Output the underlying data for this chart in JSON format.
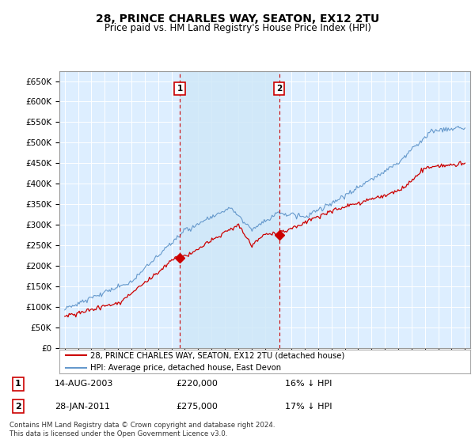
{
  "title": "28, PRINCE CHARLES WAY, SEATON, EX12 2TU",
  "subtitle": "Price paid vs. HM Land Registry's House Price Index (HPI)",
  "ylim": [
    0,
    675000
  ],
  "yticks": [
    0,
    50000,
    100000,
    150000,
    200000,
    250000,
    300000,
    350000,
    400000,
    450000,
    500000,
    550000,
    600000,
    650000
  ],
  "ylabels": [
    "£0",
    "£50K",
    "£100K",
    "£150K",
    "£200K",
    "£250K",
    "£300K",
    "£350K",
    "£400K",
    "£450K",
    "£500K",
    "£550K",
    "£600K",
    "£650K"
  ],
  "xlim": [
    1994.6,
    2025.4
  ],
  "xticks": [
    1995,
    1996,
    1997,
    1998,
    1999,
    2000,
    2001,
    2002,
    2003,
    2004,
    2005,
    2006,
    2007,
    2008,
    2009,
    2010,
    2011,
    2012,
    2013,
    2014,
    2015,
    2016,
    2017,
    2018,
    2019,
    2020,
    2021,
    2022,
    2023,
    2024,
    2025
  ],
  "sale1_x": 2003.617,
  "sale1_y": 220000,
  "sale2_x": 2011.08,
  "sale2_y": 275000,
  "red_color": "#cc0000",
  "blue_color": "#6699cc",
  "shade_color": "#d0e8f8",
  "bg_color": "#ddeeff",
  "legend_label_red": "28, PRINCE CHARLES WAY, SEATON, EX12 2TU (detached house)",
  "legend_label_blue": "HPI: Average price, detached house, East Devon",
  "footer": "Contains HM Land Registry data © Crown copyright and database right 2024.\nThis data is licensed under the Open Government Licence v3.0.",
  "sale1_date": "14-AUG-2003",
  "sale1_price": "£220,000",
  "sale1_pct": "16% ↓ HPI",
  "sale2_date": "28-JAN-2011",
  "sale2_price": "£275,000",
  "sale2_pct": "17% ↓ HPI"
}
